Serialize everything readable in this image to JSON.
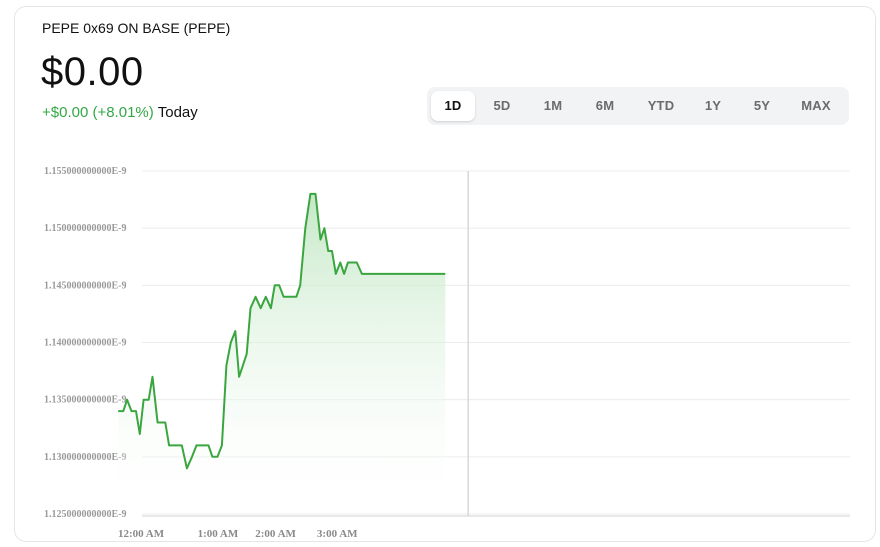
{
  "header": {
    "coin_name": "PEPE 0x69 ON BASE (PEPE)",
    "price": "$0.00",
    "change_value": "+$0.00 (+8.01%)",
    "change_label": "Today"
  },
  "range_tabs": [
    {
      "label": "1D",
      "active": true
    },
    {
      "label": "5D",
      "active": false
    },
    {
      "label": "1M",
      "active": false
    },
    {
      "label": "6M",
      "active": false
    },
    {
      "label": "YTD",
      "active": false
    },
    {
      "label": "1Y",
      "active": false
    },
    {
      "label": "5Y",
      "active": false
    },
    {
      "label": "MAX",
      "active": false
    }
  ],
  "colors": {
    "line": "#3aa63f",
    "fill_top": "#bfe6c1",
    "grid": "#ececec",
    "gain": "#34a745"
  },
  "chart_data": {
    "type": "area",
    "title": "",
    "xlabel": "",
    "ylabel": "",
    "ylim": [
      1.125e-09,
      1.155e-09
    ],
    "xlim_hours": [
      0,
      11
    ],
    "y_tick_labels": [
      "1.155000000000E-9",
      "1.150000000000E-9",
      "1.145000000000E-9",
      "1.140000000000E-9",
      "1.135000000000E-9",
      "1.130000000000E-9",
      "1.125000000000E-9"
    ],
    "y_tick_values": [
      1.155e-09,
      1.15e-09,
      1.145e-09,
      1.14e-09,
      1.135e-09,
      1.13e-09,
      1.125e-09
    ],
    "x_tick_labels": [
      "12:00 AM",
      "1:00 AM",
      "2:00 AM",
      "3:00 AM"
    ],
    "x_tick_values": [
      0,
      1,
      2,
      3
    ],
    "cursor_x": 5.0,
    "grid": true,
    "series": [
      {
        "x": [
          -0.5,
          -0.42,
          -0.36,
          -0.29,
          -0.22,
          -0.16,
          -0.1,
          -0.02,
          0.04,
          0.12,
          0.18,
          0.24,
          0.3,
          0.36,
          0.43,
          0.5,
          0.58,
          0.66,
          0.73,
          0.8,
          0.86,
          0.92,
          0.98,
          1.06,
          1.13,
          1.2,
          1.27,
          1.34,
          1.4,
          1.46,
          1.52,
          1.58,
          1.66,
          1.74,
          1.82,
          1.9,
          1.96,
          2.03,
          2.1,
          2.17,
          2.24,
          2.3,
          2.36,
          2.44,
          2.52,
          2.6,
          2.68,
          2.74,
          2.8,
          2.86,
          2.92,
          2.99,
          3.05,
          3.11,
          3.18,
          3.25,
          3.33,
          3.4,
          3.47,
          3.54,
          3.6,
          3.66,
          3.73,
          3.8,
          3.88,
          3.95,
          4.01,
          4.08,
          4.14,
          4.2,
          4.26,
          4.32,
          4.38,
          4.45,
          4.52,
          4.58,
          4.64
        ],
        "values": [
          1.134e-09,
          1.134e-09,
          1.135e-09,
          1.134e-09,
          1.134e-09,
          1.132e-09,
          1.135e-09,
          1.135e-09,
          1.137e-09,
          1.133e-09,
          1.133e-09,
          1.133e-09,
          1.131e-09,
          1.131e-09,
          1.131e-09,
          1.131e-09,
          1.129e-09,
          1.13e-09,
          1.131e-09,
          1.131e-09,
          1.131e-09,
          1.131e-09,
          1.13e-09,
          1.13e-09,
          1.131e-09,
          1.138e-09,
          1.14e-09,
          1.141e-09,
          1.137e-09,
          1.138e-09,
          1.139e-09,
          1.143e-09,
          1.144e-09,
          1.143e-09,
          1.144e-09,
          1.143e-09,
          1.145e-09,
          1.145e-09,
          1.144e-09,
          1.144e-09,
          1.144e-09,
          1.144e-09,
          1.145e-09,
          1.15e-09,
          1.153e-09,
          1.153e-09,
          1.149e-09,
          1.15e-09,
          1.148e-09,
          1.148e-09,
          1.146e-09,
          1.147e-09,
          1.146e-09,
          1.147e-09,
          1.147e-09,
          1.147e-09,
          1.146e-09,
          1.146e-09,
          1.146e-09,
          1.146e-09,
          1.146e-09,
          1.146e-09,
          1.146e-09,
          1.146e-09,
          1.146e-09,
          1.146e-09,
          1.146e-09,
          1.146e-09,
          1.146e-09,
          1.146e-09,
          1.146e-09,
          1.146e-09,
          1.146e-09,
          1.146e-09,
          1.146e-09,
          1.146e-09,
          1.146e-09
        ]
      }
    ]
  }
}
